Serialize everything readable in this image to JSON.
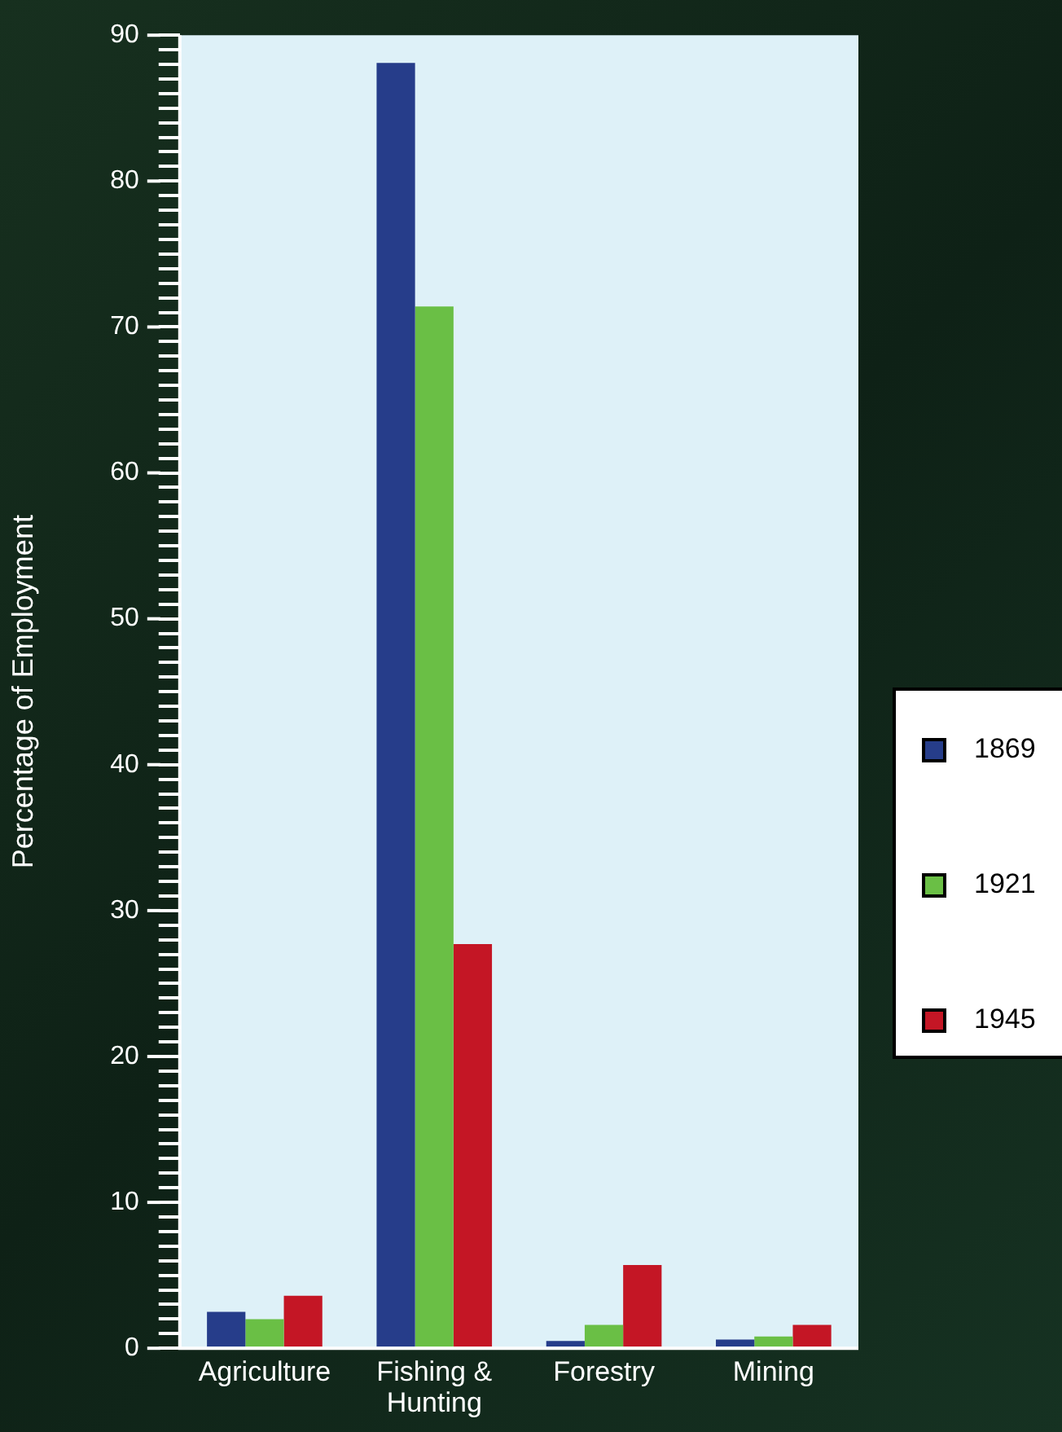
{
  "chart_data": {
    "type": "bar",
    "ylabel": "Percentage of Employment",
    "categories": [
      "Agriculture",
      "Fishing & Hunting",
      "Forestry",
      "Mining"
    ],
    "series": [
      {
        "name": "1869",
        "color": "#263d8a",
        "values": [
          2.5,
          88.1,
          0.5,
          0.6
        ]
      },
      {
        "name": "1921",
        "color": "#6abf45",
        "values": [
          2.0,
          71.4,
          1.6,
          0.8
        ]
      },
      {
        "name": "1945",
        "color": "#c41625",
        "values": [
          3.6,
          27.7,
          5.7,
          1.6
        ]
      }
    ],
    "ylim": [
      0,
      90
    ],
    "yticks": [
      0,
      {
        "value": 1,
        "label": null
      },
      {
        "value": 2,
        "label": null
      },
      {
        "value": 3,
        "label": null
      },
      {
        "value": 4,
        "label": null
      },
      {
        "value": 5,
        "label": null
      },
      {
        "value": 6,
        "label": null
      },
      {
        "value": 7,
        "label": null
      },
      {
        "value": 8,
        "label": null
      },
      {
        "value": 9,
        "label": null
      },
      10,
      {
        "value": 11,
        "label": null
      },
      {
        "value": 12,
        "label": null
      },
      {
        "value": 13,
        "label": null
      },
      {
        "value": 14,
        "label": null
      },
      {
        "value": 15,
        "label": null
      },
      {
        "value": 16,
        "label": null
      },
      {
        "value": 17,
        "label": null
      },
      {
        "value": 18,
        "label": null
      },
      {
        "value": 19,
        "label": null
      },
      20,
      {
        "value": 21,
        "label": null
      },
      {
        "value": 22,
        "label": null
      },
      {
        "value": 23,
        "label": null
      },
      {
        "value": 24,
        "label": null
      },
      {
        "value": 25,
        "label": null
      },
      {
        "value": 26,
        "label": null
      },
      {
        "value": 27,
        "label": null
      },
      {
        "value": 28,
        "label": null
      },
      {
        "value": 29,
        "label": null
      },
      30,
      {
        "value": 31,
        "label": null
      },
      {
        "value": 32,
        "label": null
      },
      {
        "value": 33,
        "label": null
      },
      {
        "value": 34,
        "label": null
      },
      {
        "value": 35,
        "label": null
      },
      {
        "value": 36,
        "label": null
      },
      {
        "value": 37,
        "label": null
      },
      {
        "value": 38,
        "label": null
      },
      {
        "value": 39,
        "label": null
      },
      40,
      {
        "value": 41,
        "label": null
      },
      {
        "value": 42,
        "label": null
      },
      {
        "value": 43,
        "label": null
      },
      {
        "value": 44,
        "label": null
      },
      {
        "value": 45,
        "label": null
      },
      {
        "value": 46,
        "label": null
      },
      {
        "value": 47,
        "label": null
      },
      {
        "value": 48,
        "label": null
      },
      {
        "value": 49,
        "label": null
      },
      50,
      {
        "value": 51,
        "label": null
      },
      {
        "value": 52,
        "label": null
      },
      {
        "value": 53,
        "label": null
      },
      {
        "value": 54,
        "label": null
      },
      {
        "value": 55,
        "label": null
      },
      {
        "value": 56,
        "label": null
      },
      {
        "value": 57,
        "label": null
      },
      {
        "value": 58,
        "label": null
      },
      {
        "value": 59,
        "label": null
      },
      60,
      {
        "value": 61,
        "label": null
      },
      {
        "value": 62,
        "label": null
      },
      {
        "value": 63,
        "label": null
      },
      {
        "value": 64,
        "label": null
      },
      {
        "value": 65,
        "label": null
      },
      {
        "value": 66,
        "label": null
      },
      {
        "value": 67,
        "label": null
      },
      {
        "value": 68,
        "label": null
      },
      {
        "value": 69,
        "label": null
      },
      70,
      {
        "value": 71,
        "label": null
      },
      {
        "value": 72,
        "label": null
      },
      {
        "value": 73,
        "label": null
      },
      {
        "value": 74,
        "label": null
      },
      {
        "value": 75,
        "label": null
      },
      {
        "value": 76,
        "label": null
      },
      {
        "value": 77,
        "label": null
      },
      {
        "value": 78,
        "label": null
      },
      {
        "value": 79,
        "label": null
      },
      80,
      {
        "value": 81,
        "label": null
      },
      {
        "value": 82,
        "label": null
      },
      {
        "value": 83,
        "label": null
      },
      {
        "value": 84,
        "label": null
      },
      {
        "value": 85,
        "label": null
      },
      {
        "value": 86,
        "label": null
      },
      {
        "value": 87,
        "label": null
      },
      {
        "value": 88,
        "label": null
      },
      {
        "value": 89,
        "label": null
      },
      90
    ],
    "legend": "right"
  }
}
